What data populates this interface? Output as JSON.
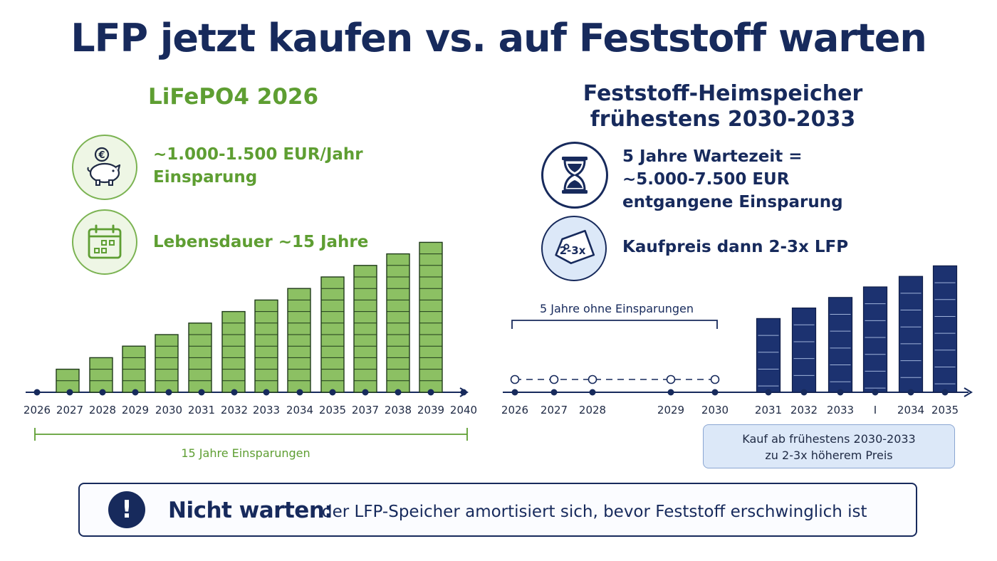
{
  "title": "LFP jetzt kaufen vs. auf Feststoff warten",
  "left": {
    "heading": "LiFePO4 2026",
    "feature1": "~1.000-1.500 EUR/Jahr\nEinsparung",
    "feature2": "Lebensdauer ~15 Jahre",
    "span_label": "15 Jahre Einsparungen"
  },
  "right": {
    "heading": "Feststoff-Heimspeicher\nfrühestens 2030-2033",
    "feature1": "5 Jahre Wartezeit =\n~5.000-7.500 EUR\nentgangene Einsparung",
    "feature2": "Kaufpreis dann 2-3x LFP",
    "tag_text": "2-3x",
    "wait_label": "5 Jahre ohne Einsparungen",
    "callout": "Kauf ab frühestens 2030-2033\nzu 2-3x höherem Preis"
  },
  "banner": {
    "icon": "!",
    "bold": "Nicht warten:",
    "text": "der LFP-Speicher amortisiert sich, bevor Feststoff erschwinglich ist"
  },
  "colors": {
    "navy": "#172a5c",
    "green": "#5e9e32",
    "bar_green": "#8cc063",
    "bar_navy": "#1c3270"
  },
  "icons": [
    "piggy-bank-euro-icon",
    "calendar-icon",
    "hourglass-icon",
    "price-tag-icon",
    "exclamation-icon"
  ],
  "chart_data": [
    {
      "type": "bar",
      "categories": [
        "2027",
        "2028",
        "2029",
        "2030",
        "2031",
        "2032",
        "2033",
        "2034",
        "2035",
        "2037",
        "2038",
        "2039"
      ],
      "values": [
        2,
        3,
        4,
        5,
        6,
        7,
        8,
        9,
        10,
        11,
        12,
        13
      ],
      "axis_ticks": [
        "2026",
        "2027",
        "2028",
        "2029",
        "2030",
        "2031",
        "2032",
        "2033",
        "2034",
        "2035",
        "2037",
        "2038",
        "2039",
        "2040"
      ],
      "color": "#8cc063"
    },
    {
      "type": "bar",
      "categories": [
        "2031",
        "2032",
        "2033",
        "",
        "2034",
        "2035"
      ],
      "values": [
        7,
        8,
        9,
        10,
        11,
        12
      ],
      "axis_ticks": [
        "2026",
        "2027",
        "2028",
        "2029",
        "2030",
        "2031",
        "2032",
        "2033",
        "I",
        "2034",
        "2035"
      ],
      "waiting_years": [
        "2026",
        "2027",
        "2028",
        "2029",
        "2030"
      ],
      "color": "#1c3270"
    }
  ]
}
